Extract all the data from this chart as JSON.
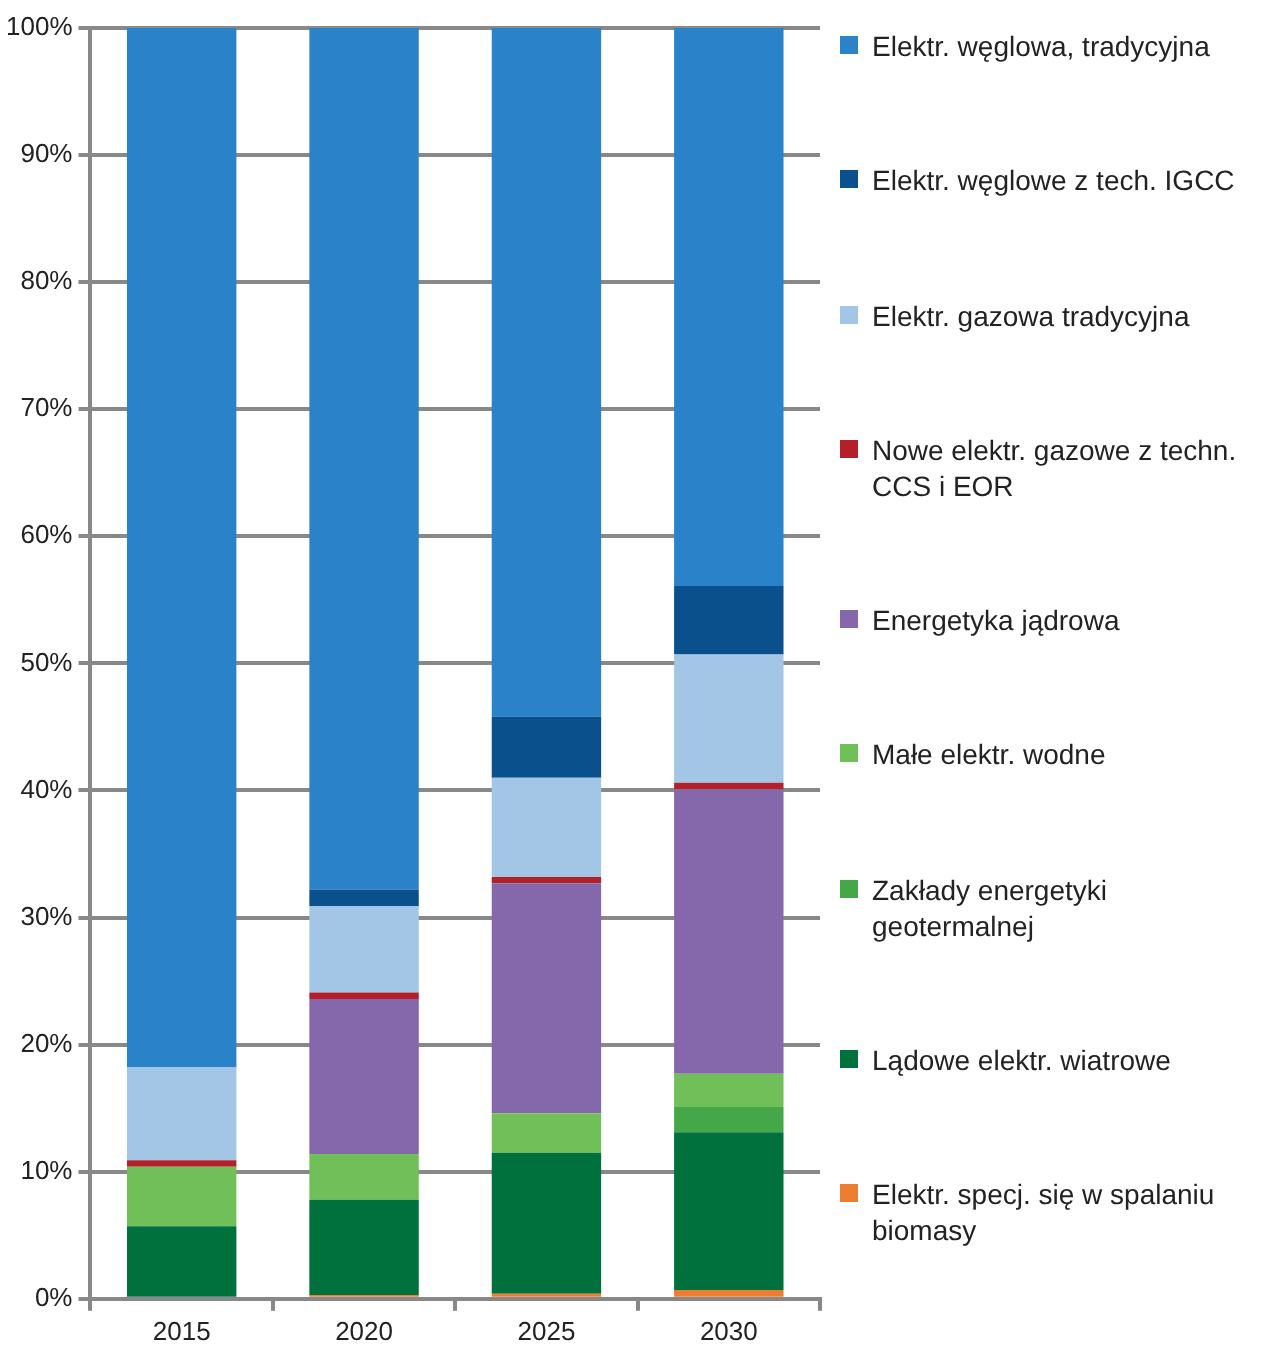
{
  "chart_data": {
    "type": "bar",
    "stacked": true,
    "categories": [
      "2015",
      "2020",
      "2025",
      "2030"
    ],
    "ylim": [
      0,
      100
    ],
    "yticks": [
      {
        "value": 0,
        "label": "0%"
      },
      {
        "value": 10,
        "label": "10%"
      },
      {
        "value": 20,
        "label": "20%"
      },
      {
        "value": 30,
        "label": "30%"
      },
      {
        "value": 40,
        "label": "40%"
      },
      {
        "value": 50,
        "label": "50%"
      },
      {
        "value": 60,
        "label": "60%"
      },
      {
        "value": 70,
        "label": "70%"
      },
      {
        "value": 80,
        "label": "80%"
      },
      {
        "value": 90,
        "label": "90%"
      },
      {
        "value": 100,
        "label": "100%"
      }
    ],
    "grid": "y",
    "legend": "right",
    "series": [
      {
        "name": "Elektr. specj. się w spalaniu biomasy",
        "color": "#ed7d31",
        "values": [
          0,
          0.3,
          0.4,
          0.7
        ]
      },
      {
        "name": "Lądowe elektr. wiatrowe",
        "color": "#00703c",
        "values": [
          5.7,
          7.5,
          11.1,
          12.4
        ]
      },
      {
        "name": "Zakłady energetyki geotermalnej",
        "color": "#44a848",
        "values": [
          0,
          0,
          0,
          2.0
        ]
      },
      {
        "name": "Małe elektr. wodne",
        "color": "#70bf58",
        "values": [
          4.7,
          3.6,
          3.1,
          2.6
        ]
      },
      {
        "name": "Energetyka jądrowa",
        "color": "#8568ac",
        "values": [
          0,
          12.2,
          18.1,
          22.4
        ]
      },
      {
        "name": "Nowe elektr. gazowe z techn. CCS i EOR",
        "color": "#b3202a",
        "values": [
          0.5,
          0.5,
          0.5,
          0.5
        ]
      },
      {
        "name": "Elektr. gazowa tradycyjna",
        "color": "#a3c6e6",
        "values": [
          7.3,
          6.8,
          7.8,
          10.1
        ]
      },
      {
        "name": "Elektr. węglowe z tech. IGCC",
        "color": "#0a508c",
        "values": [
          0,
          1.3,
          4.8,
          5.4
        ]
      },
      {
        "name": "Elektr. węglowa, tradycyjna",
        "color": "#2a82c8",
        "values": [
          81.8,
          67.9,
          54.2,
          43.9
        ]
      }
    ]
  }
}
